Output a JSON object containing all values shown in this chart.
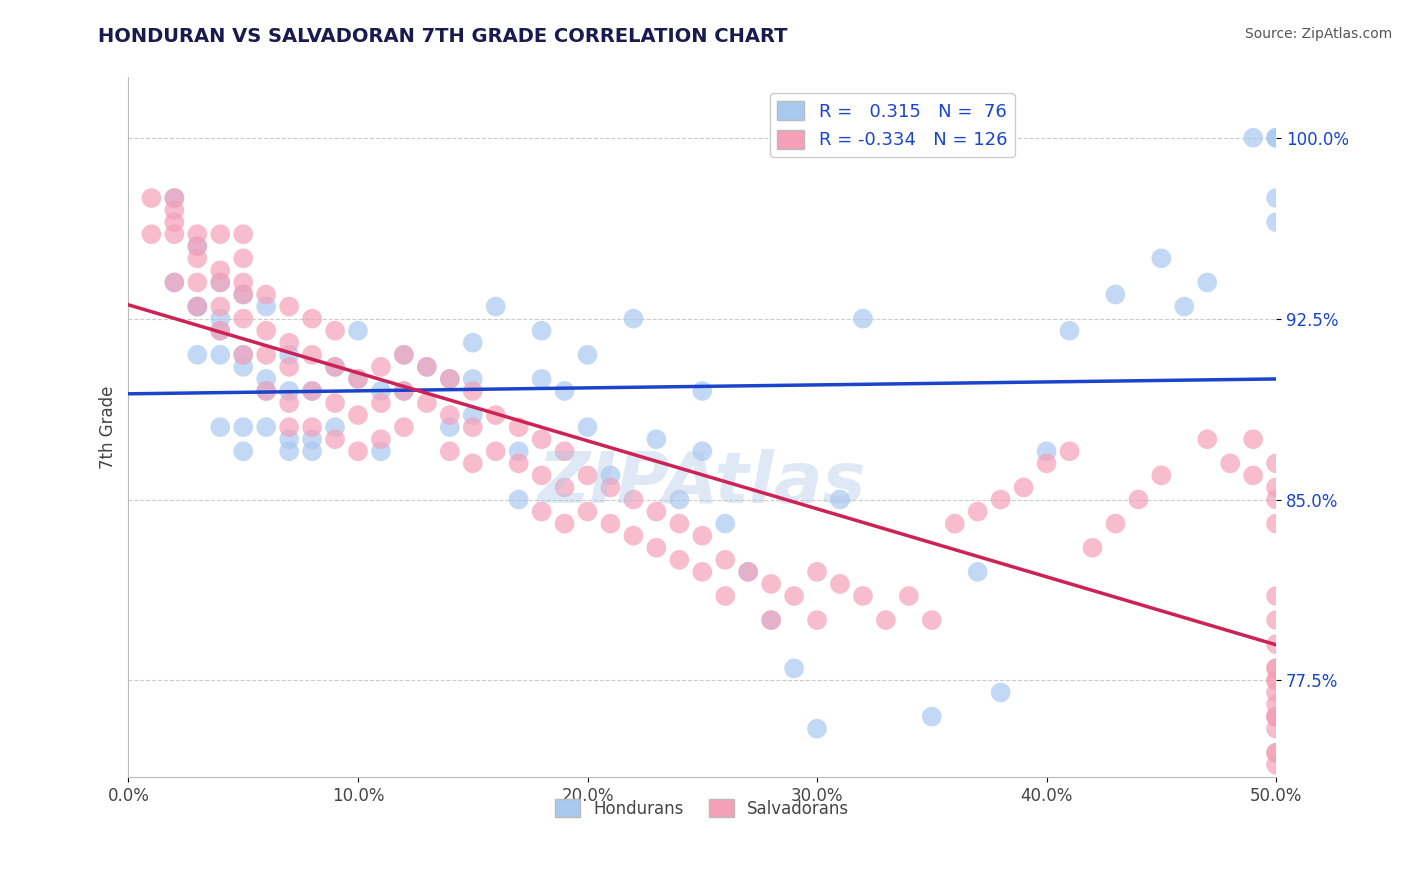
{
  "title": "HONDURAN VS SALVADORAN 7TH GRADE CORRELATION CHART",
  "source": "Source: ZipAtlas.com",
  "ylabel": "7th Grade",
  "xlim": [
    0.0,
    0.5
  ],
  "ylim": [
    0.735,
    1.025
  ],
  "xtick_labels": [
    "0.0%",
    "10.0%",
    "20.0%",
    "30.0%",
    "40.0%",
    "50.0%"
  ],
  "xtick_values": [
    0.0,
    0.1,
    0.2,
    0.3,
    0.4,
    0.5
  ],
  "ytick_labels": [
    "77.5%",
    "85.0%",
    "92.5%",
    "100.0%"
  ],
  "ytick_values": [
    0.775,
    0.85,
    0.925,
    1.0
  ],
  "blue_R": 0.315,
  "blue_N": 76,
  "pink_R": -0.334,
  "pink_N": 126,
  "blue_color": "#a8c8f0",
  "pink_color": "#f4a0b8",
  "blue_line_color": "#1a44cc",
  "pink_line_color": "#cc2255",
  "watermark": "ZIPAtlas",
  "watermark_color": "#b0c8e8",
  "legend_label_blue": "Hondurans",
  "legend_label_pink": "Salvadorans",
  "blue_scatter_x": [
    0.02,
    0.02,
    0.03,
    0.03,
    0.04,
    0.04,
    0.04,
    0.05,
    0.05,
    0.05,
    0.05,
    0.06,
    0.06,
    0.06,
    0.07,
    0.07,
    0.07,
    0.08,
    0.08,
    0.09,
    0.09,
    0.1,
    0.1,
    0.11,
    0.11,
    0.12,
    0.12,
    0.13,
    0.14,
    0.14,
    0.15,
    0.15,
    0.15,
    0.16,
    0.17,
    0.17,
    0.18,
    0.18,
    0.19,
    0.2,
    0.2,
    0.21,
    0.22,
    0.23,
    0.24,
    0.25,
    0.25,
    0.26,
    0.27,
    0.28,
    0.29,
    0.3,
    0.31,
    0.32,
    0.35,
    0.37,
    0.38,
    0.4,
    0.41,
    0.43,
    0.45,
    0.46,
    0.47,
    0.49,
    0.5,
    0.5,
    0.5,
    0.5,
    0.03,
    0.03,
    0.04,
    0.04,
    0.05,
    0.06,
    0.07,
    0.08
  ],
  "blue_scatter_y": [
    0.975,
    0.94,
    0.955,
    0.93,
    0.925,
    0.92,
    0.94,
    0.935,
    0.91,
    0.905,
    0.87,
    0.93,
    0.895,
    0.88,
    0.91,
    0.895,
    0.87,
    0.895,
    0.875,
    0.905,
    0.88,
    0.92,
    0.9,
    0.895,
    0.87,
    0.91,
    0.895,
    0.905,
    0.9,
    0.88,
    0.915,
    0.9,
    0.885,
    0.93,
    0.87,
    0.85,
    0.92,
    0.9,
    0.895,
    0.91,
    0.88,
    0.86,
    0.925,
    0.875,
    0.85,
    0.895,
    0.87,
    0.84,
    0.82,
    0.8,
    0.78,
    0.755,
    0.85,
    0.925,
    0.76,
    0.82,
    0.77,
    0.87,
    0.92,
    0.935,
    0.95,
    0.93,
    0.94,
    1.0,
    1.0,
    1.0,
    0.975,
    0.965,
    0.93,
    0.91,
    0.91,
    0.88,
    0.88,
    0.9,
    0.875,
    0.87
  ],
  "pink_scatter_x": [
    0.01,
    0.01,
    0.02,
    0.02,
    0.02,
    0.02,
    0.02,
    0.03,
    0.03,
    0.03,
    0.03,
    0.03,
    0.04,
    0.04,
    0.04,
    0.04,
    0.04,
    0.05,
    0.05,
    0.05,
    0.05,
    0.05,
    0.05,
    0.06,
    0.06,
    0.06,
    0.06,
    0.07,
    0.07,
    0.07,
    0.07,
    0.07,
    0.08,
    0.08,
    0.08,
    0.08,
    0.09,
    0.09,
    0.09,
    0.09,
    0.1,
    0.1,
    0.1,
    0.11,
    0.11,
    0.11,
    0.12,
    0.12,
    0.12,
    0.13,
    0.13,
    0.14,
    0.14,
    0.14,
    0.15,
    0.15,
    0.15,
    0.16,
    0.16,
    0.17,
    0.17,
    0.18,
    0.18,
    0.18,
    0.19,
    0.19,
    0.19,
    0.2,
    0.2,
    0.21,
    0.21,
    0.22,
    0.22,
    0.23,
    0.23,
    0.24,
    0.24,
    0.25,
    0.25,
    0.26,
    0.26,
    0.27,
    0.28,
    0.28,
    0.29,
    0.3,
    0.3,
    0.31,
    0.32,
    0.33,
    0.34,
    0.35,
    0.36,
    0.37,
    0.38,
    0.39,
    0.4,
    0.41,
    0.42,
    0.43,
    0.44,
    0.45,
    0.47,
    0.48,
    0.49,
    0.49,
    0.5,
    0.5,
    0.5,
    0.5,
    0.5,
    0.5,
    0.5,
    0.5,
    0.5,
    0.5,
    0.5,
    0.5,
    0.5,
    0.5,
    0.5,
    0.5,
    0.5,
    0.5,
    0.5,
    0.5
  ],
  "pink_scatter_y": [
    0.96,
    0.975,
    0.96,
    0.94,
    0.965,
    0.97,
    0.975,
    0.94,
    0.95,
    0.96,
    0.93,
    0.955,
    0.94,
    0.93,
    0.92,
    0.96,
    0.945,
    0.94,
    0.925,
    0.91,
    0.935,
    0.95,
    0.96,
    0.92,
    0.935,
    0.91,
    0.895,
    0.93,
    0.915,
    0.905,
    0.89,
    0.88,
    0.925,
    0.91,
    0.895,
    0.88,
    0.92,
    0.905,
    0.89,
    0.875,
    0.9,
    0.885,
    0.87,
    0.905,
    0.89,
    0.875,
    0.91,
    0.895,
    0.88,
    0.905,
    0.89,
    0.9,
    0.885,
    0.87,
    0.895,
    0.88,
    0.865,
    0.885,
    0.87,
    0.88,
    0.865,
    0.875,
    0.86,
    0.845,
    0.87,
    0.855,
    0.84,
    0.86,
    0.845,
    0.855,
    0.84,
    0.85,
    0.835,
    0.845,
    0.83,
    0.84,
    0.825,
    0.835,
    0.82,
    0.825,
    0.81,
    0.82,
    0.815,
    0.8,
    0.81,
    0.82,
    0.8,
    0.815,
    0.81,
    0.8,
    0.81,
    0.8,
    0.84,
    0.845,
    0.85,
    0.855,
    0.865,
    0.87,
    0.83,
    0.84,
    0.85,
    0.86,
    0.875,
    0.865,
    0.86,
    0.875,
    0.85,
    0.855,
    0.84,
    0.865,
    0.78,
    0.775,
    0.76,
    0.745,
    0.76,
    0.755,
    0.74,
    0.745,
    0.76,
    0.765,
    0.77,
    0.775,
    0.78,
    0.79,
    0.8,
    0.81
  ]
}
